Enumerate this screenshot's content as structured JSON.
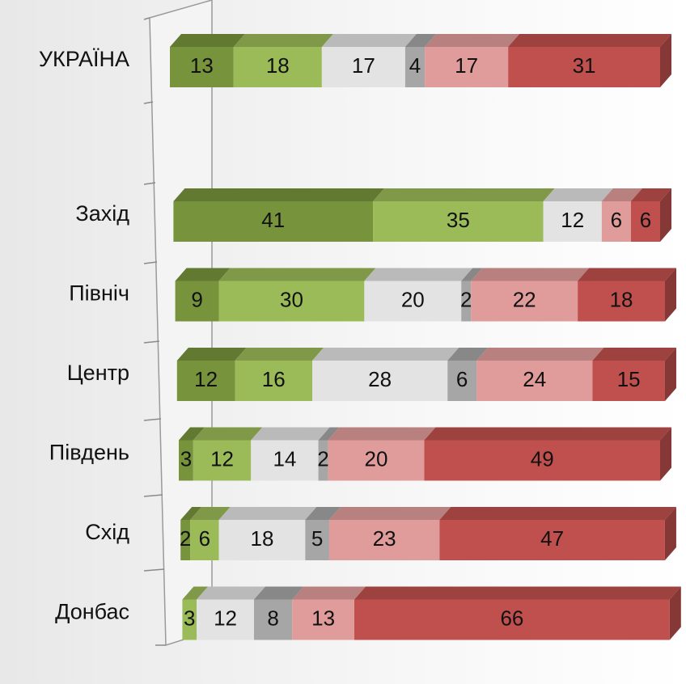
{
  "chart_data": {
    "type": "bar",
    "orientation": "horizontal",
    "stacked": true,
    "three_d": true,
    "categories": [
      "УКРАЇНА",
      null,
      "Захід",
      "Північ",
      "Центр",
      "Південь",
      "Схід",
      "Донбас"
    ],
    "series": [
      {
        "color": "#77933c",
        "values": [
          13,
          null,
          41,
          9,
          12,
          3,
          2,
          null
        ]
      },
      {
        "color": "#9bbb59",
        "values": [
          18,
          null,
          35,
          30,
          16,
          12,
          6,
          3
        ]
      },
      {
        "color": "#e3e3e3",
        "values": [
          17,
          null,
          12,
          20,
          28,
          14,
          18,
          12
        ]
      },
      {
        "color": "#a6a6a6",
        "values": [
          4,
          null,
          null,
          2,
          6,
          2,
          5,
          8
        ]
      },
      {
        "color": "#e09c9b",
        "values": [
          17,
          null,
          6,
          22,
          24,
          20,
          23,
          13
        ]
      },
      {
        "color": "#c0504d",
        "values": [
          31,
          null,
          6,
          18,
          15,
          49,
          47,
          66
        ]
      }
    ]
  }
}
